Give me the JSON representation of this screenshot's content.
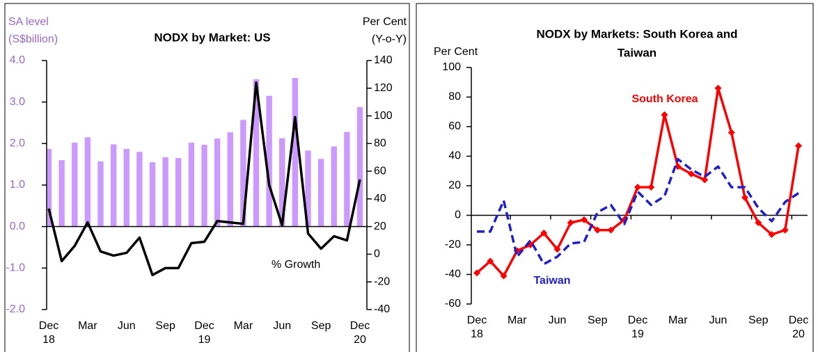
{
  "chart_data": [
    {
      "type": "combo",
      "title": "NODX by Market: US",
      "y_label": [
        "SA level",
        "(S$billion)"
      ],
      "y2_label": [
        "Per Cent",
        "(Y-o-Y)"
      ],
      "categories": [
        "Dec",
        null,
        null,
        "Mar",
        null,
        null,
        "Jun",
        null,
        null,
        "Sep",
        null,
        null,
        "Dec",
        null,
        null,
        "Mar",
        null,
        null,
        "Jun",
        null,
        null,
        "Sep",
        null,
        null,
        "Dec"
      ],
      "years": [
        "18",
        "19",
        "20"
      ],
      "ylim": [
        -2,
        4
      ],
      "yticks": [
        {
          "value": 4,
          "label": "4.0"
        },
        {
          "value": 3,
          "label": "3.0"
        },
        {
          "value": 2,
          "label": "2.0"
        },
        {
          "value": 1,
          "label": "1.0"
        },
        {
          "value": 0,
          "label": "0.0"
        },
        {
          "value": -1,
          "label": "-1.0"
        },
        {
          "value": -2,
          "label": "-2.0"
        }
      ],
      "y2lim": [
        -40,
        140
      ],
      "y2ticks": [
        140,
        120,
        100,
        80,
        60,
        40,
        20,
        0,
        -20,
        -40
      ],
      "series": [
        {
          "kind": "bar",
          "color": "#cc99ff",
          "values": [
            1.87,
            1.6,
            2.02,
            2.15,
            1.57,
            1.98,
            1.87,
            1.8,
            1.55,
            1.67,
            1.65,
            2.02,
            1.97,
            2.12,
            2.27,
            2.57,
            3.55,
            3.15,
            2.13,
            3.58,
            1.83,
            1.63,
            1.93,
            2.28,
            2.88
          ]
        },
        {
          "kind": "line",
          "name": "% Growth",
          "axis": "y2",
          "color": "#000000",
          "values": [
            33,
            -5,
            6,
            23,
            2,
            -1,
            1,
            12,
            -15,
            -10,
            -10,
            8,
            9,
            24,
            23,
            22,
            124,
            50,
            21,
            99,
            15,
            4,
            13,
            10,
            54
          ]
        }
      ]
    },
    {
      "type": "line",
      "title": [
        "NODX by Markets: South Korea and",
        "Taiwan"
      ],
      "y_label": "Per Cent",
      "categories": [
        "Dec",
        null,
        null,
        "Mar",
        null,
        null,
        "Jun",
        null,
        null,
        "Sep",
        null,
        null,
        "Dec",
        null,
        null,
        "Mar",
        null,
        null,
        "Jun",
        null,
        null,
        "Sep",
        null,
        null,
        "Dec"
      ],
      "years": [
        "18",
        "19",
        "20"
      ],
      "ylim": [
        -60,
        100
      ],
      "yticks": [
        100,
        80,
        60,
        40,
        20,
        0,
        -20,
        -40,
        -60
      ],
      "series": [
        {
          "name": "South Korea",
          "color": "#ff0000",
          "markers": true,
          "values": [
            -39,
            -31,
            -41,
            -24,
            -20,
            -12,
            -23,
            -5,
            -3,
            -10,
            -10,
            -3,
            19,
            19,
            68,
            33,
            28,
            24,
            86,
            56,
            12,
            -5,
            -13,
            -10,
            47
          ]
        },
        {
          "name": "Taiwan",
          "color": "#1f1fcc",
          "dashed": true,
          "values": [
            -11,
            -11,
            10,
            -28,
            -17,
            -33,
            -28,
            -19,
            -18,
            2,
            7,
            -6,
            16,
            7,
            13,
            38,
            31,
            26,
            33,
            19,
            19,
            5,
            -4,
            9,
            15
          ]
        }
      ]
    }
  ]
}
